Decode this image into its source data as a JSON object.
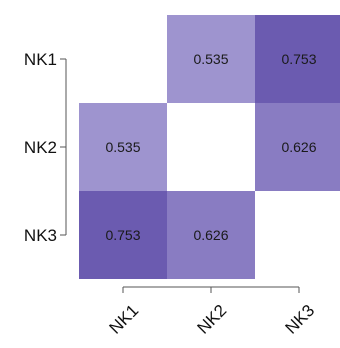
{
  "chart_data": {
    "type": "heatmap",
    "title": "",
    "xlabel": "",
    "ylabel": "",
    "x_categories": [
      "NK1",
      "NK2",
      "NK3"
    ],
    "y_categories": [
      "NK1",
      "NK2",
      "NK3"
    ],
    "matrix": [
      [
        null,
        0.535,
        0.753
      ],
      [
        0.535,
        null,
        0.626
      ],
      [
        0.753,
        0.626,
        null
      ]
    ],
    "cell_labels": [
      [
        "",
        "0.535",
        "0.753"
      ],
      [
        "0.535",
        "",
        "0.626"
      ],
      [
        "0.753",
        "0.626",
        ""
      ]
    ],
    "color_low": "#9e94cf",
    "color_high": "#6b5bb0",
    "empty_color": "#ffffff",
    "legend": "none",
    "grid": false
  }
}
